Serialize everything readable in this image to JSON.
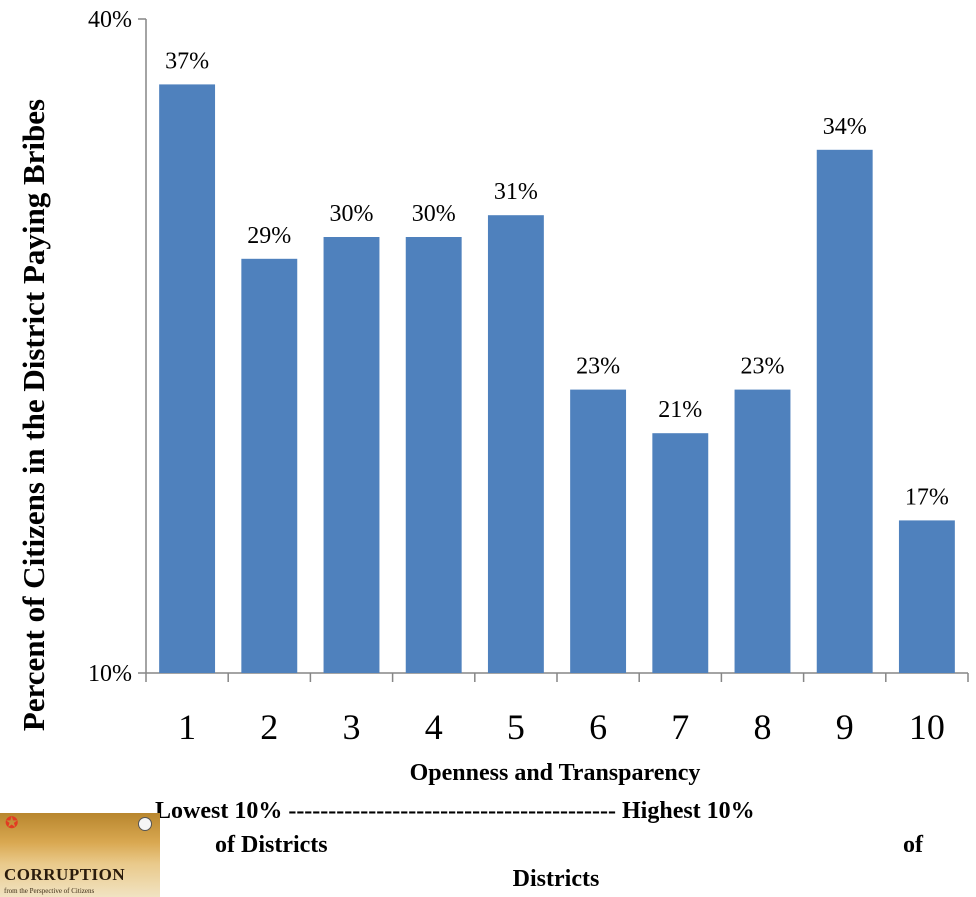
{
  "chart_data": {
    "type": "bar",
    "categories": [
      "1",
      "2",
      "3",
      "4",
      "5",
      "6",
      "7",
      "8",
      "9",
      "10"
    ],
    "values": [
      37,
      29,
      30,
      30,
      31,
      23,
      21,
      23,
      34,
      17
    ],
    "data_labels": [
      "37%",
      "29%",
      "30%",
      "30%",
      "31%",
      "23%",
      "21%",
      "23%",
      "34%",
      "17%"
    ],
    "ylim": [
      10,
      40
    ],
    "y_ticks": [
      10,
      40
    ],
    "y_tick_labels": [
      "10%",
      "40%"
    ],
    "ylabel": "Percent of Citizens in the District Paying Bribes",
    "xlabel": "Openness and Transparency",
    "bar_color": "#4f81bd",
    "grid": false,
    "legend": "none"
  },
  "annotations": {
    "range_line": "Lowest 10% ----------------------------------------- Highest 10%",
    "range_low": "of Districts",
    "range_high": "of",
    "range_districts": "Districts"
  },
  "logo": {
    "text": "CORRUPTION",
    "subtext": "from the Perspective of Citizens"
  }
}
